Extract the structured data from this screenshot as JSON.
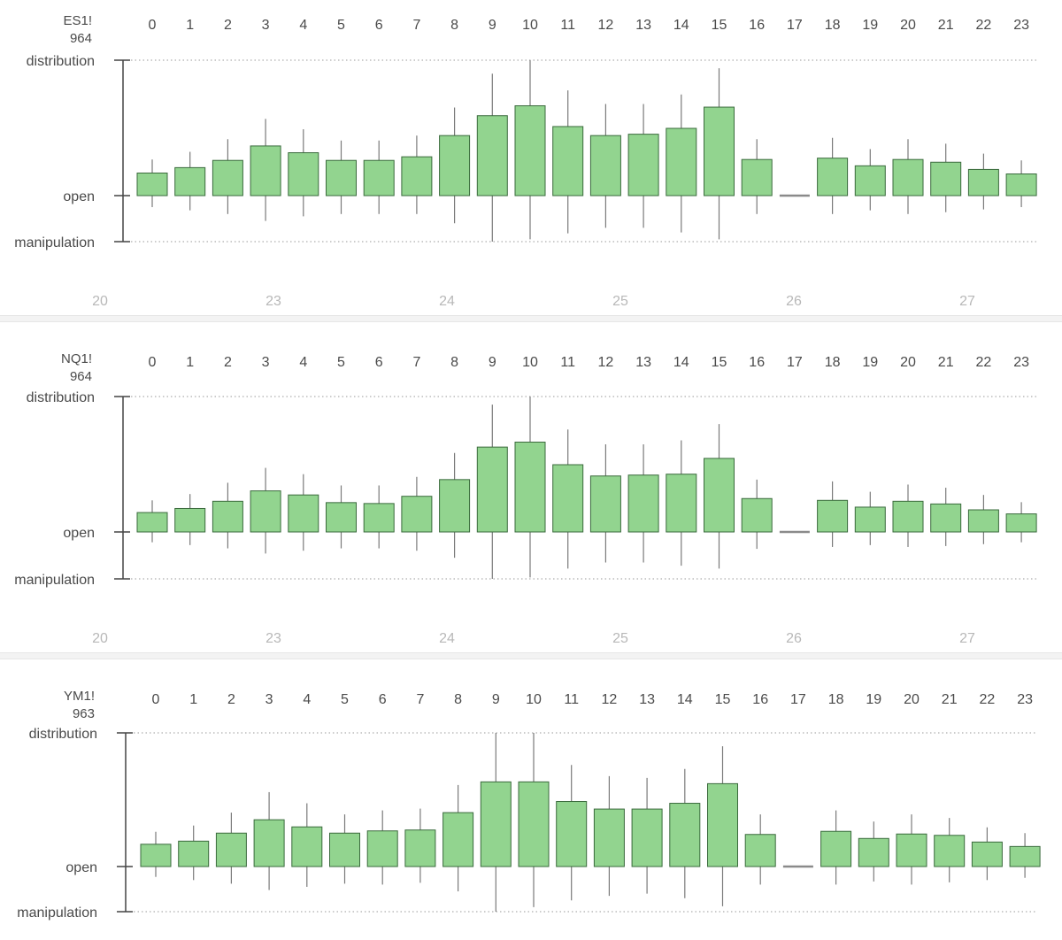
{
  "colors": {
    "candle_fill": "#92d48f",
    "candle_stroke": "#3a6a3c",
    "wick": "#7a7a7a",
    "axis": "#444444",
    "grid": "#9a9a9a",
    "label": "#4a4a4a",
    "day_label": "#b8b8b8",
    "flat_marker": "#8a8a8a"
  },
  "chart_data": [
    {
      "type": "candlestick",
      "symbol": "ES1!",
      "count": "964",
      "y_labels": {
        "top": "distribution",
        "mid": "open",
        "bottom": "manipulation"
      },
      "x_hours": [
        "0",
        "1",
        "2",
        "3",
        "4",
        "5",
        "6",
        "7",
        "8",
        "9",
        "10",
        "11",
        "12",
        "13",
        "14",
        "15",
        "16",
        "17",
        "18",
        "19",
        "20",
        "21",
        "22",
        "23"
      ],
      "day_labels": [
        "20",
        "23",
        "24",
        "25",
        "26",
        "27"
      ],
      "ylim": [
        -1,
        3
      ],
      "grid": "dotted at top and bottom",
      "candles": [
        {
          "hour": "0",
          "top": 0.5,
          "high": 0.8,
          "low": -0.25
        },
        {
          "hour": "1",
          "top": 0.62,
          "high": 0.97,
          "low": -0.32
        },
        {
          "hour": "2",
          "top": 0.78,
          "high": 1.25,
          "low": -0.4
        },
        {
          "hour": "3",
          "top": 1.1,
          "high": 1.7,
          "low": -0.55
        },
        {
          "hour": "4",
          "top": 0.95,
          "high": 1.47,
          "low": -0.45
        },
        {
          "hour": "5",
          "top": 0.78,
          "high": 1.22,
          "low": -0.4
        },
        {
          "hour": "6",
          "top": 0.78,
          "high": 1.22,
          "low": -0.4
        },
        {
          "hour": "7",
          "top": 0.86,
          "high": 1.33,
          "low": -0.4
        },
        {
          "hour": "8",
          "top": 1.33,
          "high": 1.95,
          "low": -0.6
        },
        {
          "hour": "9",
          "top": 1.77,
          "high": 2.7,
          "low": -1.0
        },
        {
          "hour": "10",
          "top": 1.99,
          "high": 3.0,
          "low": -0.95
        },
        {
          "hour": "11",
          "top": 1.53,
          "high": 2.33,
          "low": -0.82
        },
        {
          "hour": "12",
          "top": 1.33,
          "high": 2.03,
          "low": -0.7
        },
        {
          "hour": "13",
          "top": 1.36,
          "high": 2.03,
          "low": -0.7
        },
        {
          "hour": "14",
          "top": 1.49,
          "high": 2.24,
          "low": -0.8
        },
        {
          "hour": "15",
          "top": 1.96,
          "high": 2.82,
          "low": -0.95
        },
        {
          "hour": "16",
          "top": 0.8,
          "high": 1.25,
          "low": -0.4
        },
        {
          "hour": "17",
          "top": 0.0,
          "high": 0.0,
          "low": 0.0
        },
        {
          "hour": "18",
          "top": 0.83,
          "high": 1.28,
          "low": -0.4
        },
        {
          "hour": "19",
          "top": 0.66,
          "high": 1.03,
          "low": -0.32
        },
        {
          "hour": "20",
          "top": 0.8,
          "high": 1.25,
          "low": -0.4
        },
        {
          "hour": "21",
          "top": 0.74,
          "high": 1.15,
          "low": -0.36
        },
        {
          "hour": "22",
          "top": 0.58,
          "high": 0.93,
          "low": -0.3
        },
        {
          "hour": "23",
          "top": 0.48,
          "high": 0.78,
          "low": -0.25
        }
      ]
    },
    {
      "type": "candlestick",
      "symbol": "NQ1!",
      "count": "964",
      "y_labels": {
        "top": "distribution",
        "mid": "open",
        "bottom": "manipulation"
      },
      "x_hours": [
        "0",
        "1",
        "2",
        "3",
        "4",
        "5",
        "6",
        "7",
        "8",
        "9",
        "10",
        "11",
        "12",
        "13",
        "14",
        "15",
        "16",
        "17",
        "18",
        "19",
        "20",
        "21",
        "22",
        "23"
      ],
      "day_labels": [
        "20",
        "23",
        "24",
        "25",
        "26",
        "27"
      ],
      "ylim": [
        -1,
        3
      ],
      "grid": "dotted at top and bottom",
      "candles": [
        {
          "hour": "0",
          "top": 0.43,
          "high": 0.7,
          "low": -0.22
        },
        {
          "hour": "1",
          "top": 0.52,
          "high": 0.84,
          "low": -0.28
        },
        {
          "hour": "2",
          "top": 0.68,
          "high": 1.09,
          "low": -0.35
        },
        {
          "hour": "3",
          "top": 0.91,
          "high": 1.42,
          "low": -0.46
        },
        {
          "hour": "4",
          "top": 0.82,
          "high": 1.28,
          "low": -0.4
        },
        {
          "hour": "5",
          "top": 0.65,
          "high": 1.03,
          "low": -0.35
        },
        {
          "hour": "6",
          "top": 0.63,
          "high": 1.03,
          "low": -0.35
        },
        {
          "hour": "7",
          "top": 0.79,
          "high": 1.22,
          "low": -0.4
        },
        {
          "hour": "8",
          "top": 1.16,
          "high": 1.75,
          "low": -0.55
        },
        {
          "hour": "9",
          "top": 1.88,
          "high": 2.82,
          "low": -1.0
        },
        {
          "hour": "10",
          "top": 1.99,
          "high": 3.0,
          "low": -0.97
        },
        {
          "hour": "11",
          "top": 1.49,
          "high": 2.27,
          "low": -0.78
        },
        {
          "hour": "12",
          "top": 1.24,
          "high": 1.94,
          "low": -0.65
        },
        {
          "hour": "13",
          "top": 1.26,
          "high": 1.94,
          "low": -0.65
        },
        {
          "hour": "14",
          "top": 1.28,
          "high": 2.03,
          "low": -0.72
        },
        {
          "hour": "15",
          "top": 1.63,
          "high": 2.39,
          "low": -0.78
        },
        {
          "hour": "16",
          "top": 0.74,
          "high": 1.16,
          "low": -0.36
        },
        {
          "hour": "17",
          "top": 0.0,
          "high": 0.0,
          "low": 0.0
        },
        {
          "hour": "18",
          "top": 0.7,
          "high": 1.12,
          "low": -0.32
        },
        {
          "hour": "19",
          "top": 0.55,
          "high": 0.89,
          "low": -0.28
        },
        {
          "hour": "20",
          "top": 0.68,
          "high": 1.05,
          "low": -0.32
        },
        {
          "hour": "21",
          "top": 0.62,
          "high": 0.98,
          "low": -0.3
        },
        {
          "hour": "22",
          "top": 0.49,
          "high": 0.82,
          "low": -0.26
        },
        {
          "hour": "23",
          "top": 0.4,
          "high": 0.66,
          "low": -0.22
        }
      ]
    },
    {
      "type": "candlestick",
      "symbol": "YM1!",
      "count": "963",
      "y_labels": {
        "top": "distribution",
        "mid": "open",
        "bottom": "manipulation"
      },
      "x_hours": [
        "0",
        "1",
        "2",
        "3",
        "4",
        "5",
        "6",
        "7",
        "8",
        "9",
        "10",
        "11",
        "12",
        "13",
        "14",
        "15",
        "16",
        "17",
        "18",
        "19",
        "20",
        "21",
        "22",
        "23"
      ],
      "day_labels": [],
      "ylim": [
        -1,
        3
      ],
      "grid": "dotted at top and bottom",
      "candles": [
        {
          "hour": "0",
          "top": 0.5,
          "high": 0.78,
          "low": -0.23
        },
        {
          "hour": "1",
          "top": 0.57,
          "high": 0.92,
          "low": -0.3
        },
        {
          "hour": "2",
          "top": 0.75,
          "high": 1.21,
          "low": -0.38
        },
        {
          "hour": "3",
          "top": 1.05,
          "high": 1.67,
          "low": -0.52
        },
        {
          "hour": "4",
          "top": 0.89,
          "high": 1.42,
          "low": -0.45
        },
        {
          "hour": "5",
          "top": 0.75,
          "high": 1.17,
          "low": -0.38
        },
        {
          "hour": "6",
          "top": 0.8,
          "high": 1.26,
          "low": -0.4
        },
        {
          "hour": "7",
          "top": 0.82,
          "high": 1.3,
          "low": -0.36
        },
        {
          "hour": "8",
          "top": 1.21,
          "high": 1.83,
          "low": -0.55
        },
        {
          "hour": "9",
          "top": 1.9,
          "high": 3.0,
          "low": -1.0
        },
        {
          "hour": "10",
          "top": 1.9,
          "high": 3.0,
          "low": -0.9
        },
        {
          "hour": "11",
          "top": 1.46,
          "high": 2.28,
          "low": -0.75
        },
        {
          "hour": "12",
          "top": 1.29,
          "high": 2.03,
          "low": -0.65
        },
        {
          "hour": "13",
          "top": 1.29,
          "high": 1.99,
          "low": -0.6
        },
        {
          "hour": "14",
          "top": 1.42,
          "high": 2.19,
          "low": -0.7
        },
        {
          "hour": "15",
          "top": 1.86,
          "high": 2.7,
          "low": -0.88
        },
        {
          "hour": "16",
          "top": 0.72,
          "high": 1.17,
          "low": -0.4
        },
        {
          "hour": "17",
          "top": 0.0,
          "high": 0.0,
          "low": 0.0
        },
        {
          "hour": "18",
          "top": 0.79,
          "high": 1.26,
          "low": -0.4
        },
        {
          "hour": "19",
          "top": 0.63,
          "high": 1.01,
          "low": -0.33
        },
        {
          "hour": "20",
          "top": 0.73,
          "high": 1.17,
          "low": -0.4
        },
        {
          "hour": "21",
          "top": 0.7,
          "high": 1.09,
          "low": -0.35
        },
        {
          "hour": "22",
          "top": 0.55,
          "high": 0.88,
          "low": -0.3
        },
        {
          "hour": "23",
          "top": 0.45,
          "high": 0.75,
          "low": -0.25
        }
      ]
    }
  ]
}
